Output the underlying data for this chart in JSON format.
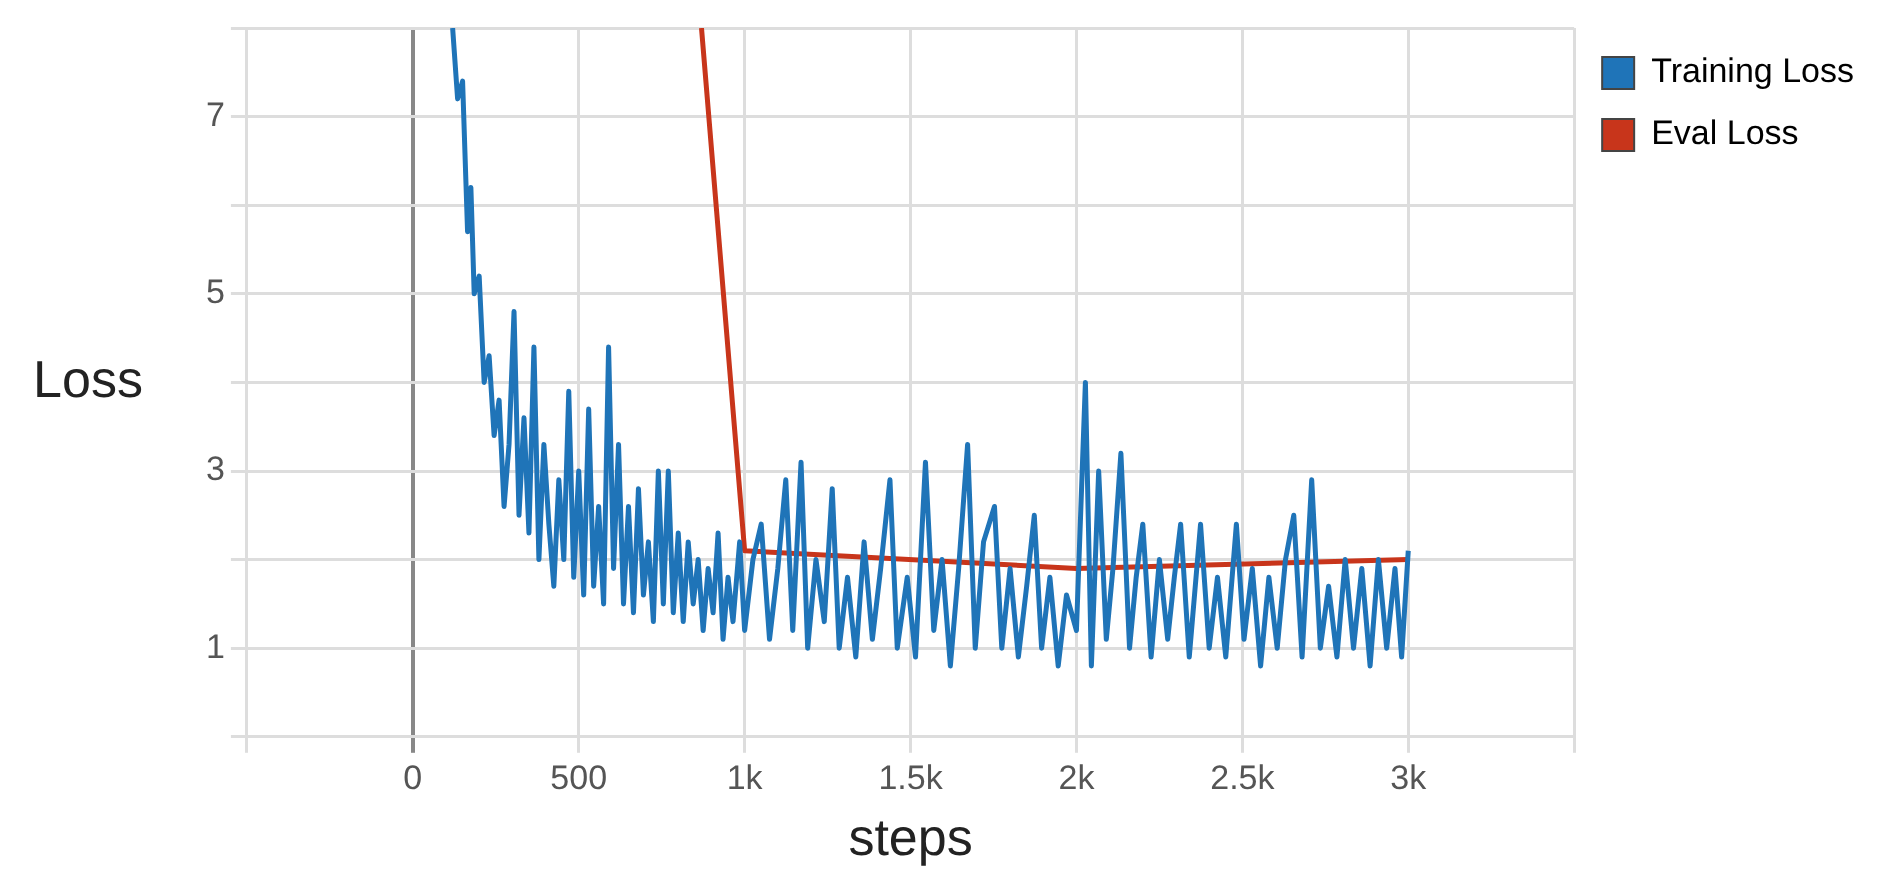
{
  "chart_data": {
    "type": "line",
    "xlabel": "steps",
    "ylabel": "Loss",
    "legend": "right",
    "grid": true,
    "marker": "none",
    "line_style": "solid",
    "xlim": [
      -500,
      3500
    ],
    "ylim": [
      0,
      8
    ],
    "xticks": [
      {
        "value": -500,
        "label": null
      },
      {
        "value": 0,
        "label": "0"
      },
      {
        "value": 500,
        "label": "500"
      },
      {
        "value": 1000,
        "label": "1k"
      },
      {
        "value": 1500,
        "label": "1.5k"
      },
      {
        "value": 2000,
        "label": "2k"
      },
      {
        "value": 2500,
        "label": "2.5k"
      },
      {
        "value": 3000,
        "label": "3k"
      },
      {
        "value": 3500,
        "label": null
      }
    ],
    "yticks": [
      {
        "value": 0,
        "label": null
      },
      1,
      {
        "value": 2,
        "label": null
      },
      3,
      {
        "value": 4,
        "label": null
      },
      5,
      {
        "value": 6,
        "label": null
      },
      7,
      {
        "value": 8,
        "label": null
      }
    ],
    "series": [
      {
        "name": "Training Loss",
        "color": "#1f74b8",
        "x": [
          120,
          135,
          150,
          165,
          175,
          185,
          200,
          215,
          230,
          245,
          260,
          275,
          290,
          305,
          320,
          335,
          350,
          365,
          380,
          395,
          410,
          425,
          440,
          455,
          470,
          485,
          500,
          515,
          530,
          545,
          560,
          575,
          590,
          605,
          620,
          635,
          650,
          665,
          680,
          695,
          710,
          725,
          740,
          755,
          770,
          785,
          800,
          815,
          830,
          845,
          860,
          875,
          890,
          905,
          920,
          935,
          950,
          965,
          985,
          1000,
          1025,
          1050,
          1075,
          1100,
          1124,
          1145,
          1170,
          1190,
          1215,
          1240,
          1264,
          1285,
          1310,
          1335,
          1360,
          1385,
          1410,
          1438,
          1460,
          1490,
          1515,
          1545,
          1570,
          1595,
          1620,
          1645,
          1672,
          1695,
          1720,
          1753,
          1775,
          1800,
          1825,
          1850,
          1873,
          1895,
          1920,
          1945,
          1970,
          2000,
          2027,
          2045,
          2067,
          2090,
          2110,
          2134,
          2160,
          2180,
          2200,
          2225,
          2250,
          2275,
          2295,
          2314,
          2340,
          2374,
          2400,
          2425,
          2450,
          2482,
          2505,
          2530,
          2555,
          2580,
          2605,
          2630,
          2655,
          2680,
          2709,
          2735,
          2760,
          2785,
          2810,
          2835,
          2860,
          2885,
          2910,
          2935,
          2960,
          2980,
          3000
        ],
        "values": [
          8,
          7.2,
          7.4,
          5.7,
          6.2,
          5.0,
          5.2,
          4.0,
          4.3,
          3.4,
          3.8,
          2.6,
          3.3,
          4.8,
          2.5,
          3.6,
          2.3,
          4.4,
          2.0,
          3.3,
          2.4,
          1.7,
          2.9,
          2.0,
          3.9,
          1.8,
          3.0,
          1.6,
          3.7,
          1.7,
          2.6,
          1.5,
          4.4,
          1.9,
          3.3,
          1.5,
          2.6,
          1.4,
          2.8,
          1.6,
          2.2,
          1.3,
          3.0,
          1.5,
          3.0,
          1.4,
          2.3,
          1.3,
          2.2,
          1.5,
          2.0,
          1.2,
          1.9,
          1.4,
          2.3,
          1.1,
          1.8,
          1.3,
          2.2,
          1.2,
          2.0,
          2.4,
          1.1,
          1.9,
          2.9,
          1.2,
          3.1,
          1.0,
          2.0,
          1.3,
          2.8,
          1.0,
          1.8,
          0.9,
          2.2,
          1.1,
          1.9,
          2.9,
          1.0,
          1.8,
          0.9,
          3.1,
          1.2,
          2.0,
          0.8,
          1.9,
          3.3,
          1.0,
          2.2,
          2.6,
          1.0,
          1.9,
          0.9,
          1.7,
          2.5,
          1.0,
          1.8,
          0.8,
          1.6,
          1.2,
          4.0,
          0.8,
          3.0,
          1.1,
          1.9,
          3.2,
          1.0,
          1.8,
          2.4,
          0.9,
          2.0,
          1.1,
          1.8,
          2.4,
          0.9,
          2.4,
          1.0,
          1.8,
          0.9,
          2.4,
          1.1,
          1.9,
          0.8,
          1.8,
          1.0,
          2.0,
          2.5,
          0.9,
          2.9,
          1.0,
          1.7,
          0.9,
          2.0,
          1.0,
          1.9,
          0.8,
          2.0,
          1.0,
          1.9,
          0.9,
          2.1
        ]
      },
      {
        "name": "Eval Loss",
        "color": "#c8351b",
        "x": [
          870,
          1000,
          2000,
          3000
        ],
        "values": [
          8,
          2.1,
          1.9,
          2.0
        ]
      }
    ]
  }
}
